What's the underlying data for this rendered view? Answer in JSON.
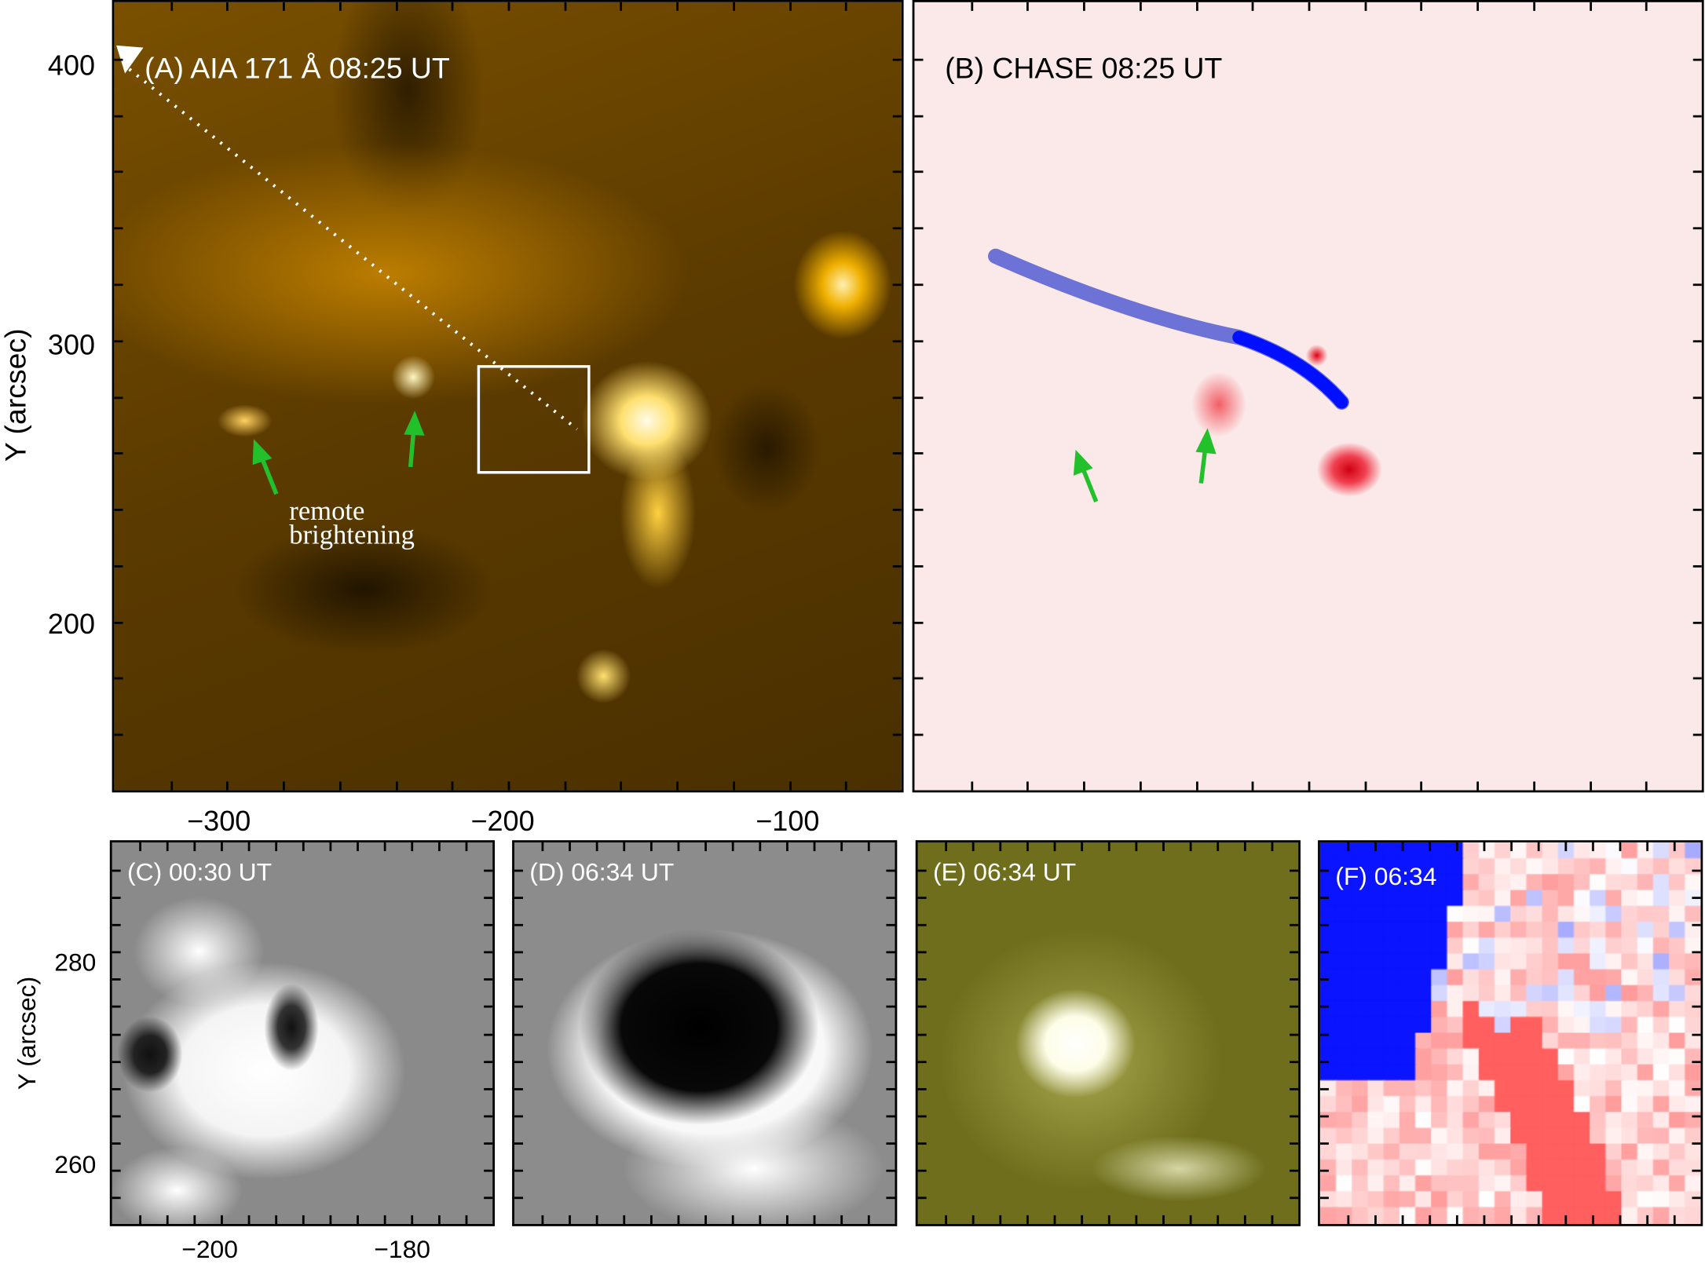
{
  "panels": {
    "a": {
      "label": "(A) AIA 171 Å 08:25 UT",
      "annotation_line1": "remote",
      "annotation_line2": "brightening"
    },
    "b": {
      "label": "(B) CHASE 08:25 UT"
    },
    "c": {
      "label": "(C) 00:30 UT"
    },
    "d": {
      "label": "(D) 06:34 UT"
    },
    "e": {
      "label": "(E) 06:34 UT"
    },
    "f": {
      "label": "(F) 06:34"
    }
  },
  "axes": {
    "top": {
      "ylabel": "Y (arcsec)",
      "yticks": [
        "400",
        "300",
        "200"
      ],
      "xticks": [
        "−300",
        "−200",
        "−100"
      ]
    },
    "bottom": {
      "ylabel": "Y (arcsec)",
      "yticks": [
        "280",
        "260"
      ],
      "xticks": [
        "−200",
        "−180"
      ]
    }
  },
  "colors": {
    "aia": "#c89000",
    "arrow": "#22c02a",
    "blue": "#0010ff",
    "red": "#ff1010",
    "olive": "#6e6e1c"
  }
}
